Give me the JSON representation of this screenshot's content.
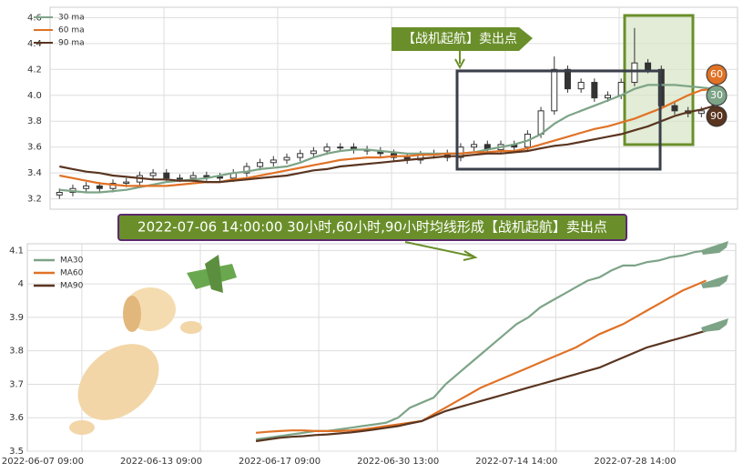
{
  "chart_data": [
    {
      "type": "candlestick",
      "open": [
        3.23,
        3.25,
        3.28,
        3.3,
        3.28,
        3.32,
        3.33,
        3.38,
        3.4,
        3.36,
        3.36,
        3.38,
        3.37,
        3.36,
        3.4,
        3.45,
        3.48,
        3.5,
        3.52,
        3.55,
        3.57,
        3.6,
        3.6,
        3.58,
        3.57,
        3.55,
        3.52,
        3.5,
        3.54,
        3.55,
        3.52,
        3.6,
        3.62,
        3.58,
        3.62,
        3.6,
        3.7,
        3.88,
        4.2,
        4.05,
        4.1,
        3.98,
        4.0,
        4.1,
        4.25,
        4.2,
        3.92,
        3.88,
        3.86,
        3.88
      ],
      "high": [
        3.28,
        3.31,
        3.33,
        3.33,
        3.35,
        3.36,
        3.41,
        3.43,
        3.43,
        3.39,
        3.41,
        3.41,
        3.4,
        3.43,
        3.48,
        3.51,
        3.53,
        3.55,
        3.58,
        3.6,
        3.63,
        3.63,
        3.63,
        3.61,
        3.6,
        3.58,
        3.55,
        3.57,
        3.58,
        3.58,
        3.63,
        3.65,
        3.65,
        3.65,
        3.65,
        3.73,
        3.91,
        4.3,
        4.23,
        4.13,
        4.13,
        4.03,
        4.13,
        4.52,
        4.28,
        4.23,
        3.95,
        3.91,
        3.91,
        3.96
      ],
      "low": [
        3.2,
        3.22,
        3.25,
        3.25,
        3.25,
        3.29,
        3.3,
        3.35,
        3.33,
        3.33,
        3.33,
        3.34,
        3.33,
        3.33,
        3.37,
        3.42,
        3.45,
        3.47,
        3.49,
        3.52,
        3.54,
        3.57,
        3.55,
        3.54,
        3.52,
        3.49,
        3.47,
        3.47,
        3.51,
        3.49,
        3.49,
        3.57,
        3.55,
        3.55,
        3.57,
        3.57,
        3.67,
        3.85,
        4.02,
        4.02,
        3.95,
        3.95,
        3.97,
        4.07,
        4.17,
        3.89,
        3.85,
        3.83,
        3.83,
        3.85
      ],
      "close": [
        3.25,
        3.28,
        3.3,
        3.28,
        3.32,
        3.33,
        3.38,
        3.4,
        3.36,
        3.36,
        3.38,
        3.37,
        3.36,
        3.4,
        3.45,
        3.48,
        3.5,
        3.52,
        3.55,
        3.57,
        3.6,
        3.6,
        3.58,
        3.57,
        3.55,
        3.52,
        3.5,
        3.54,
        3.55,
        3.52,
        3.6,
        3.62,
        3.58,
        3.62,
        3.6,
        3.7,
        3.88,
        4.2,
        4.05,
        4.1,
        3.98,
        4.0,
        4.1,
        4.25,
        4.2,
        3.92,
        3.88,
        3.86,
        3.88,
        3.93
      ],
      "candle_color": "#333333",
      "series": [
        {
          "name": "30 ma",
          "color": "#7da487",
          "values": [
            3.27,
            3.26,
            3.25,
            3.25,
            3.26,
            3.27,
            3.29,
            3.31,
            3.33,
            3.34,
            3.35,
            3.36,
            3.38,
            3.4,
            3.41,
            3.43,
            3.44,
            3.45,
            3.48,
            3.52,
            3.55,
            3.57,
            3.58,
            3.58,
            3.57,
            3.56,
            3.55,
            3.55,
            3.55,
            3.55,
            3.55,
            3.56,
            3.58,
            3.6,
            3.62,
            3.65,
            3.7,
            3.78,
            3.84,
            3.88,
            3.92,
            3.96,
            4.0,
            4.05,
            4.08,
            4.08,
            4.08,
            4.07,
            4.06,
            4.05
          ]
        },
        {
          "name": "60 ma",
          "color": "#e07226",
          "values": [
            3.38,
            3.36,
            3.34,
            3.32,
            3.31,
            3.3,
            3.3,
            3.3,
            3.3,
            3.31,
            3.32,
            3.33,
            3.33,
            3.35,
            3.36,
            3.38,
            3.4,
            3.42,
            3.44,
            3.46,
            3.48,
            3.5,
            3.51,
            3.52,
            3.52,
            3.53,
            3.53,
            3.54,
            3.54,
            3.55,
            3.55,
            3.56,
            3.56,
            3.57,
            3.57,
            3.59,
            3.62,
            3.65,
            3.68,
            3.71,
            3.74,
            3.76,
            3.79,
            3.82,
            3.86,
            3.9,
            3.95,
            4.0,
            4.04,
            4.05
          ]
        },
        {
          "name": "90 ma",
          "color": "#5a3520",
          "values": [
            3.45,
            3.43,
            3.41,
            3.4,
            3.38,
            3.37,
            3.36,
            3.35,
            3.35,
            3.34,
            3.34,
            3.33,
            3.33,
            3.34,
            3.35,
            3.36,
            3.37,
            3.38,
            3.4,
            3.42,
            3.43,
            3.45,
            3.46,
            3.47,
            3.48,
            3.49,
            3.5,
            3.51,
            3.52,
            3.53,
            3.53,
            3.54,
            3.55,
            3.55,
            3.56,
            3.57,
            3.59,
            3.61,
            3.62,
            3.64,
            3.66,
            3.68,
            3.7,
            3.73,
            3.76,
            3.8,
            3.84,
            3.87,
            3.89,
            3.92
          ]
        }
      ],
      "ylim": [
        3.12,
        4.68
      ],
      "yticks": [
        3.2,
        3.4,
        3.6,
        3.8,
        4.0,
        4.2,
        4.4,
        4.6
      ],
      "yticklabels": [
        "3.2",
        "3.4",
        "3.6",
        "3.8",
        "4.0",
        "4.2",
        "4.4",
        "4.6"
      ],
      "grid": true,
      "legend": "upper left",
      "annotation": "【战机起航】卖出点",
      "badges": [
        "60",
        "30",
        "90"
      ]
    },
    {
      "type": "line",
      "banner": "2022-07-06 14:00:00 30小时,60小时,90小时均线形成【战机起航】卖出点",
      "x": [
        18,
        19,
        20,
        21,
        22,
        23,
        24,
        25,
        26,
        27,
        28,
        29,
        30,
        31,
        32,
        33,
        34,
        35,
        36,
        37,
        38,
        39,
        40,
        41,
        42,
        43,
        44,
        45,
        46,
        47,
        48,
        49,
        50,
        51,
        52,
        53,
        54,
        55,
        56
      ],
      "series": [
        {
          "name": "MA30",
          "color": "#7da487",
          "values": [
            3.535,
            3.54,
            3.545,
            3.55,
            3.555,
            3.56,
            3.56,
            3.565,
            3.57,
            3.575,
            3.58,
            3.585,
            3.6,
            3.63,
            3.645,
            3.66,
            3.7,
            3.73,
            3.76,
            3.79,
            3.82,
            3.85,
            3.88,
            3.9,
            3.93,
            3.95,
            3.97,
            3.99,
            4.01,
            4.02,
            4.04,
            4.055,
            4.055,
            4.065,
            4.07,
            4.08,
            4.085,
            4.095,
            4.1
          ]
        },
        {
          "name": "MA60",
          "color": "#e07226",
          "values": [
            3.555,
            3.558,
            3.56,
            3.562,
            3.562,
            3.56,
            3.56,
            3.56,
            3.562,
            3.565,
            3.57,
            3.575,
            3.58,
            3.585,
            3.59,
            3.61,
            3.63,
            3.65,
            3.67,
            3.69,
            3.705,
            3.72,
            3.735,
            3.75,
            3.765,
            3.78,
            3.795,
            3.81,
            3.83,
            3.85,
            3.865,
            3.88,
            3.9,
            3.92,
            3.94,
            3.96,
            3.98,
            3.995,
            4.01
          ]
        },
        {
          "name": "MA90",
          "color": "#5a3520",
          "values": [
            3.53,
            3.535,
            3.54,
            3.543,
            3.545,
            3.548,
            3.55,
            3.553,
            3.556,
            3.56,
            3.565,
            3.57,
            3.575,
            3.583,
            3.59,
            3.605,
            3.62,
            3.63,
            3.64,
            3.65,
            3.66,
            3.67,
            3.68,
            3.69,
            3.7,
            3.71,
            3.72,
            3.73,
            3.74,
            3.75,
            3.765,
            3.78,
            3.795,
            3.81,
            3.82,
            3.83,
            3.84,
            3.85,
            3.86
          ]
        }
      ],
      "xlim": [
        -1.3,
        58.5
      ],
      "xticks": [
        {
          "value": 0,
          "label": "2022-06-07 09:00"
        },
        {
          "value": 10,
          "label": "2022-06-13 09:00"
        },
        {
          "value": 20,
          "label": "2022-06-17 09:00"
        },
        {
          "value": 30,
          "label": "2022-06-30 13:00"
        },
        {
          "value": 40,
          "label": "2022-07-14 14:00"
        },
        {
          "value": 50,
          "label": "2022-07-28 14:00"
        }
      ],
      "ylim": [
        3.5,
        4.12
      ],
      "yticks": [
        3.5,
        3.6,
        3.7,
        3.8,
        3.9,
        4.0,
        4.1
      ],
      "grid": true,
      "legend": "upper left"
    }
  ]
}
